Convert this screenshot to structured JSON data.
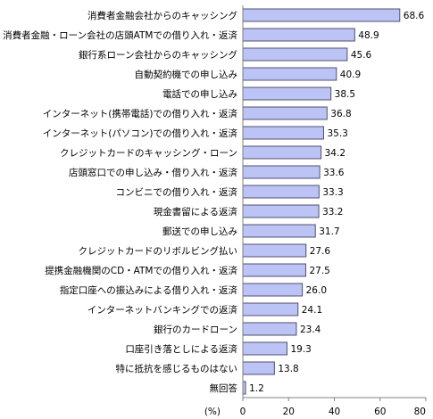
{
  "chart_data": {
    "type": "bar",
    "orientation": "horizontal",
    "categories": [
      "消費者金融会社からのキャッシング",
      "消費者金融・ローン会社の店頭ATMでの借り入れ・返済",
      "銀行系ローン会社からのキャッシング",
      "自動契約機での申し込み",
      "電話での申し込み",
      "インターネット(携帯電話)での借り入れ・返済",
      "インターネット(パソコン)での借り入れ・返済",
      "クレジットカードのキャッシング・ローン",
      "店頭窓口での申し込み・借り入れ・返済",
      "コンビニでの借り入れ・返済",
      "現金書留による返済",
      "郵送での申し込み",
      "クレジットカードのリボルビング払い",
      "提携金融機関のCD・ATMでの借り入れ・返済",
      "指定口座への振込みによる借り入れ・返済",
      "インターネットバンキングでの返済",
      "銀行のカードローン",
      "口座引き落としによる返済",
      "特に抵抗を感じるものはない",
      "無回答"
    ],
    "values": [
      68.6,
      48.9,
      45.6,
      40.9,
      38.5,
      36.8,
      35.3,
      34.2,
      33.6,
      33.3,
      33.2,
      31.7,
      27.6,
      27.5,
      26.0,
      24.1,
      23.4,
      19.3,
      13.8,
      1.2
    ],
    "value_labels": [
      "68.6",
      "48.9",
      "45.6",
      "40.9",
      "38.5",
      "36.8",
      "35.3",
      "34.2",
      "33.6",
      "33.3",
      "33.2",
      "31.7",
      "27.6",
      "27.5",
      "26.0",
      "24.1",
      "23.4",
      "19.3",
      "13.8",
      "1.2"
    ],
    "xlim": [
      0,
      80
    ],
    "xticks": [
      "0",
      "20",
      "40",
      "60",
      "80"
    ],
    "xlabel": "(%)",
    "grid": false,
    "colors": {
      "bar_fill": "#bcc3f5",
      "bar_stroke": "#50506e",
      "axis": "#808080"
    }
  }
}
